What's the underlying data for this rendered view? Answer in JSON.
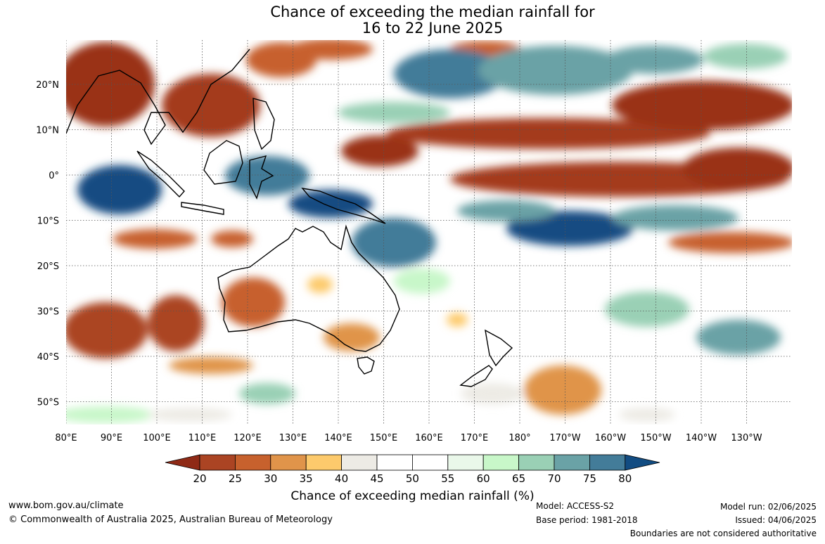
{
  "title_line1": "Chance of exceeding the median rainfall for",
  "title_line2": "16 to 22 June 2025",
  "lat_labels": [
    "20°N",
    "10°N",
    "0°",
    "10°S",
    "20°S",
    "30°S",
    "40°S",
    "50°S"
  ],
  "lon_labels": [
    "80°E",
    "90°E",
    "100°E",
    "110°E",
    "120°E",
    "130°E",
    "140°E",
    "150°E",
    "160°E",
    "170°E",
    "180°",
    "170°W",
    "160°W",
    "150°W",
    "140°W",
    "130°W"
  ],
  "colorbar": {
    "label": "Chance of exceeding median rainfall (%)",
    "ticks": [
      "20",
      "25",
      "30",
      "35",
      "40",
      "45",
      "50",
      "55",
      "60",
      "65",
      "70",
      "75",
      "80"
    ],
    "under_color": "#8f2a16",
    "bin_colors": [
      "#ab4423",
      "#c7612d",
      "#e0944a",
      "#fdca6c",
      "#edebe5",
      "#ffffff",
      "#ffffff",
      "#eaf8ea",
      "#c8f7c9",
      "#9ad0b5",
      "#6aa2a6",
      "#437c99"
    ],
    "over_color": "#124c82"
  },
  "footer": {
    "site": "www.bom.gov.au/climate",
    "copyright": "© Commonwealth of Australia 2025, Australian Bureau of Meteorology",
    "model": "Model: ACCESS-S2",
    "base_period": "Base period: 1981-2018",
    "model_run": "Model run: 02/06/2025",
    "issued": "Issued: 04/06/2025",
    "disclaimer": "Boundaries are not considered authoritative"
  }
}
